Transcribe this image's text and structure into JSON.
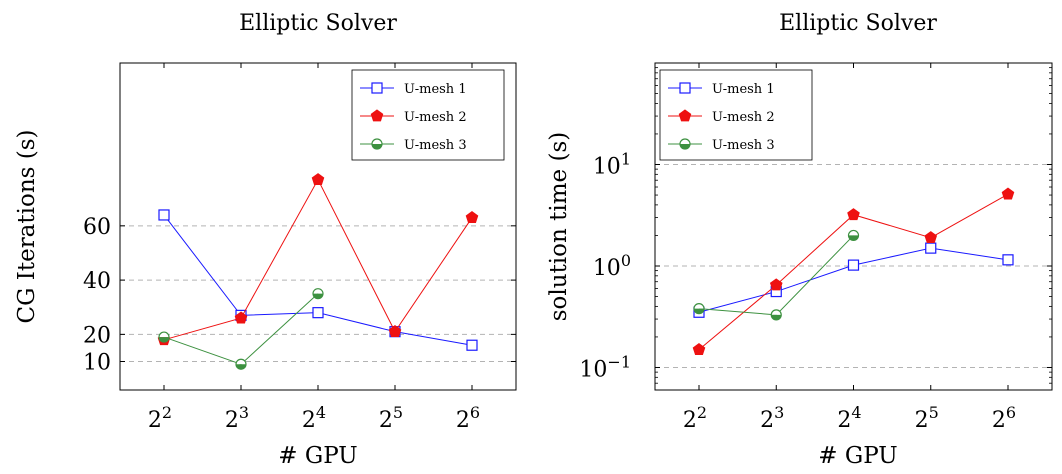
{
  "chart_data": [
    {
      "type": "line",
      "title": "Elliptic Solver",
      "xlabel": "# GPU",
      "ylabel": "CG Iterations (s)",
      "x_scale": "log2",
      "x": [
        4,
        8,
        16,
        32,
        64
      ],
      "x_tick_labels": [
        {
          "base": "2",
          "exp": "2"
        },
        {
          "base": "2",
          "exp": "3"
        },
        {
          "base": "2",
          "exp": "4"
        },
        {
          "base": "2",
          "exp": "5"
        },
        {
          "base": "2",
          "exp": "6"
        }
      ],
      "y_scale": "linear",
      "ylim": [
        -0.5,
        120
      ],
      "y_ticks": [
        10,
        20,
        40,
        60
      ],
      "y_tick_labels": [
        "10",
        "20",
        "40",
        "60"
      ],
      "grid": "horizontal dashed at y ticks",
      "legend_position": "top-right",
      "series": [
        {
          "name": "U-mesh 1",
          "color": "#1a1aff",
          "marker": "square-open",
          "values": [
            64,
            27,
            28,
            21,
            16
          ]
        },
        {
          "name": "U-mesh 2",
          "color": "#ee1111",
          "marker": "pentagon-filled",
          "values": [
            18,
            26,
            77,
            21,
            63
          ]
        },
        {
          "name": "U-mesh 3",
          "color": "#3d9140",
          "marker": "half-circle",
          "values": [
            19,
            9,
            35,
            null,
            null
          ]
        }
      ]
    },
    {
      "type": "line",
      "title": "Elliptic Solver",
      "xlabel": "# GPU",
      "ylabel": "solution time (s)",
      "x_scale": "log2",
      "x": [
        4,
        8,
        16,
        32,
        64
      ],
      "x_tick_labels": [
        {
          "base": "2",
          "exp": "2"
        },
        {
          "base": "2",
          "exp": "3"
        },
        {
          "base": "2",
          "exp": "4"
        },
        {
          "base": "2",
          "exp": "5"
        },
        {
          "base": "2",
          "exp": "6"
        }
      ],
      "y_scale": "log10",
      "ylim": [
        0.06,
        100
      ],
      "y_ticks": [
        0.1,
        1,
        10
      ],
      "y_tick_labels": [
        {
          "base": "10",
          "exp": "−1"
        },
        {
          "base": "10",
          "exp": "0"
        },
        {
          "base": "10",
          "exp": "1"
        }
      ],
      "grid": "horizontal dashed at y ticks",
      "legend_position": "top-left",
      "series": [
        {
          "name": "U-mesh 1",
          "color": "#1a1aff",
          "marker": "square-open",
          "values": [
            0.35,
            0.56,
            1.02,
            1.5,
            1.15
          ]
        },
        {
          "name": "U-mesh 2",
          "color": "#ee1111",
          "marker": "pentagon-filled",
          "values": [
            0.15,
            0.65,
            3.2,
            1.9,
            5.1
          ]
        },
        {
          "name": "U-mesh 3",
          "color": "#3d9140",
          "marker": "half-circle",
          "values": [
            0.38,
            0.33,
            2.0,
            null,
            null
          ]
        }
      ]
    }
  ]
}
